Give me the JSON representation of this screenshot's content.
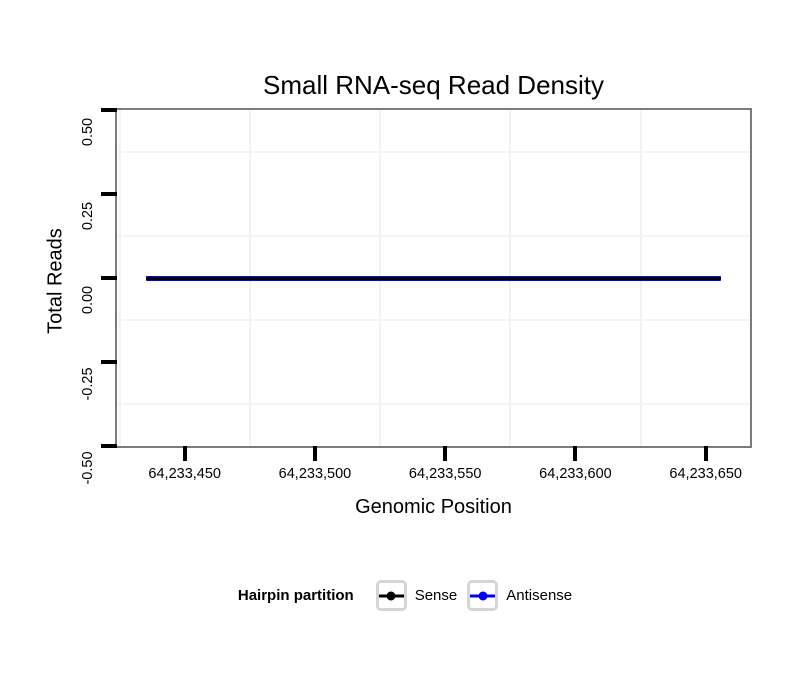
{
  "chart_data": {
    "type": "line",
    "title": "Small RNA-seq Read Density",
    "xlabel": "Genomic Position",
    "ylabel": "Total Reads",
    "xlim": [
      64233424,
      64233667
    ],
    "ylim": [
      -0.5,
      0.5
    ],
    "x_ticks": {
      "values": [
        64233450,
        64233500,
        64233550,
        64233600,
        64233650
      ],
      "labels": [
        "64,233,450",
        "64,233,500",
        "64,233,550",
        "64,233,600",
        "64,233,650"
      ]
    },
    "y_ticks": {
      "values": [
        0.5,
        0.25,
        0,
        -0.25,
        -0.5
      ],
      "labels": [
        "0.50",
        "0.25",
        "0.00",
        "-0.25",
        "-0.50"
      ]
    },
    "grid": {
      "style": "minor-only",
      "color": "#f2f2f2"
    },
    "panel_border_color": "#7c7c7c",
    "series": [
      {
        "name": "Sense",
        "color": "#000000",
        "x": [
          64233435,
          64233656
        ],
        "y": [
          0,
          0
        ]
      },
      {
        "name": "Antisense",
        "color": "#0000ee",
        "x": [
          64233435,
          64233656
        ],
        "y": [
          0,
          0
        ]
      }
    ],
    "legend": {
      "title": "Hairpin partition",
      "position": "bottom",
      "entries": [
        {
          "label": "Sense",
          "color": "#000000"
        },
        {
          "label": "Antisense",
          "color": "#0000ee"
        }
      ]
    }
  }
}
